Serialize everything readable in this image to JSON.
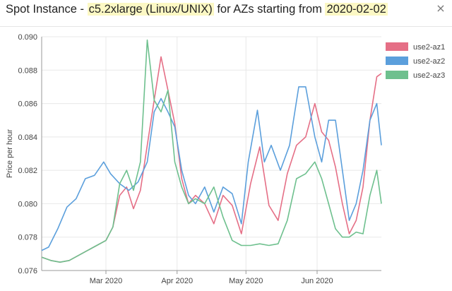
{
  "header": {
    "title_prefix": "Spot Instance - ",
    "instance": "c5.2xlarge (Linux/UNIX)",
    "title_middle": " for AZs starting from ",
    "start_date": "2020-02-02",
    "close_glyph": "×"
  },
  "chart_data": {
    "type": "line",
    "ylabel": "Price per hour",
    "xlabel": "",
    "ylim": [
      0.076,
      0.09
    ],
    "xlim": [
      "2020-02-02",
      "2020-06-29"
    ],
    "y_ticks": [
      "0.090",
      "0.088",
      "0.086",
      "0.084",
      "0.082",
      "0.080",
      "0.078",
      "0.076"
    ],
    "x_ticks": [
      {
        "date": "2020-03-01",
        "label": "Mar 2020"
      },
      {
        "date": "2020-04-01",
        "label": "Apr 2020"
      },
      {
        "date": "2020-05-01",
        "label": "May 2020"
      },
      {
        "date": "2020-06-01",
        "label": "Jun 2020"
      }
    ],
    "grid": true,
    "legend_position": "right",
    "series": [
      {
        "name": "use2-az1",
        "color": "#e56f86",
        "x": [
          "2020-02-02",
          "2020-02-06",
          "2020-02-10",
          "2020-02-14",
          "2020-02-18",
          "2020-02-22",
          "2020-02-26",
          "2020-03-01",
          "2020-03-04",
          "2020-03-07",
          "2020-03-10",
          "2020-03-13",
          "2020-03-16",
          "2020-03-19",
          "2020-03-22",
          "2020-03-25",
          "2020-03-28",
          "2020-03-31",
          "2020-04-03",
          "2020-04-06",
          "2020-04-09",
          "2020-04-13",
          "2020-04-17",
          "2020-04-21",
          "2020-04-25",
          "2020-04-29",
          "2020-05-03",
          "2020-05-07",
          "2020-05-11",
          "2020-05-15",
          "2020-05-19",
          "2020-05-23",
          "2020-05-27",
          "2020-05-31",
          "2020-06-03",
          "2020-06-06",
          "2020-06-09",
          "2020-06-12",
          "2020-06-15",
          "2020-06-18",
          "2020-06-21",
          "2020-06-24",
          "2020-06-27",
          "2020-06-29"
        ],
        "y": [
          0.0768,
          0.0766,
          0.0765,
          0.0766,
          0.0769,
          0.0772,
          0.0775,
          0.0778,
          0.0786,
          0.0805,
          0.081,
          0.0797,
          0.0808,
          0.0835,
          0.0862,
          0.0888,
          0.0868,
          0.0848,
          0.0815,
          0.08,
          0.0805,
          0.08,
          0.0788,
          0.0805,
          0.0799,
          0.0782,
          0.0812,
          0.0834,
          0.0799,
          0.079,
          0.0818,
          0.0835,
          0.084,
          0.086,
          0.0843,
          0.0838,
          0.0822,
          0.08,
          0.0782,
          0.079,
          0.081,
          0.085,
          0.0876,
          0.0878
        ]
      },
      {
        "name": "use2-az2",
        "color": "#5b9fdc",
        "x": [
          "2020-02-02",
          "2020-02-05",
          "2020-02-09",
          "2020-02-13",
          "2020-02-17",
          "2020-02-21",
          "2020-02-25",
          "2020-02-29",
          "2020-03-03",
          "2020-03-07",
          "2020-03-11",
          "2020-03-15",
          "2020-03-19",
          "2020-03-22",
          "2020-03-25",
          "2020-03-28",
          "2020-03-31",
          "2020-04-03",
          "2020-04-06",
          "2020-04-09",
          "2020-04-13",
          "2020-04-17",
          "2020-04-21",
          "2020-04-25",
          "2020-04-29",
          "2020-05-02",
          "2020-05-06",
          "2020-05-09",
          "2020-05-12",
          "2020-05-16",
          "2020-05-20",
          "2020-05-24",
          "2020-05-27",
          "2020-05-31",
          "2020-06-03",
          "2020-06-06",
          "2020-06-09",
          "2020-06-12",
          "2020-06-15",
          "2020-06-18",
          "2020-06-21",
          "2020-06-24",
          "2020-06-27",
          "2020-06-29"
        ],
        "y": [
          0.0772,
          0.0774,
          0.0785,
          0.0798,
          0.0803,
          0.0815,
          0.0817,
          0.0825,
          0.0818,
          0.0812,
          0.0808,
          0.0813,
          0.0825,
          0.0855,
          0.0863,
          0.0855,
          0.0846,
          0.082,
          0.0805,
          0.08,
          0.081,
          0.0795,
          0.081,
          0.0806,
          0.0788,
          0.0825,
          0.0856,
          0.0825,
          0.0835,
          0.082,
          0.0835,
          0.087,
          0.087,
          0.084,
          0.0825,
          0.085,
          0.085,
          0.082,
          0.079,
          0.08,
          0.082,
          0.085,
          0.086,
          0.0835
        ]
      },
      {
        "name": "use2-az3",
        "color": "#6ec08e",
        "x": [
          "2020-02-02",
          "2020-02-06",
          "2020-02-10",
          "2020-02-14",
          "2020-02-18",
          "2020-02-22",
          "2020-02-26",
          "2020-03-01",
          "2020-03-04",
          "2020-03-07",
          "2020-03-10",
          "2020-03-13",
          "2020-03-16",
          "2020-03-19",
          "2020-03-22",
          "2020-03-25",
          "2020-03-28",
          "2020-03-31",
          "2020-04-03",
          "2020-04-06",
          "2020-04-09",
          "2020-04-13",
          "2020-04-17",
          "2020-04-21",
          "2020-04-25",
          "2020-04-29",
          "2020-05-03",
          "2020-05-07",
          "2020-05-11",
          "2020-05-15",
          "2020-05-19",
          "2020-05-23",
          "2020-05-27",
          "2020-05-31",
          "2020-06-03",
          "2020-06-06",
          "2020-06-09",
          "2020-06-12",
          "2020-06-15",
          "2020-06-18",
          "2020-06-21",
          "2020-06-24",
          "2020-06-27",
          "2020-06-29"
        ],
        "y": [
          0.0768,
          0.0766,
          0.0765,
          0.0766,
          0.0769,
          0.0772,
          0.0775,
          0.0778,
          0.0786,
          0.0812,
          0.082,
          0.0808,
          0.0825,
          0.0898,
          0.0862,
          0.0855,
          0.0868,
          0.0825,
          0.081,
          0.08,
          0.0803,
          0.08,
          0.081,
          0.0792,
          0.0778,
          0.0775,
          0.0775,
          0.0776,
          0.0775,
          0.0776,
          0.079,
          0.0815,
          0.0818,
          0.0825,
          0.0815,
          0.08,
          0.0785,
          0.078,
          0.078,
          0.0783,
          0.0782,
          0.0805,
          0.082,
          0.08
        ]
      }
    ]
  }
}
